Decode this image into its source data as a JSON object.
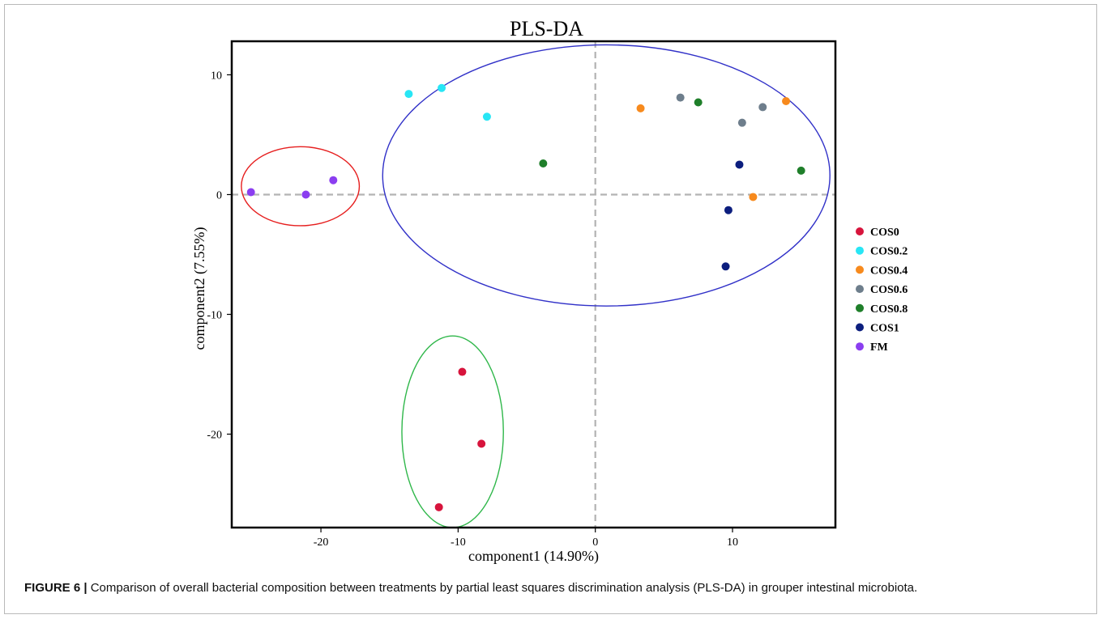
{
  "caption": {
    "label": "FIGURE 6 |",
    "text": "Comparison of overall bacterial composition between treatments by partial least squares discrimination analysis (PLS-DA) in grouper intestinal microbiota."
  },
  "chart_data": {
    "type": "scatter",
    "title": "PLS-DA",
    "xlabel": "component1 (14.90%)",
    "ylabel": "component2 (7.55%)",
    "xlim": [
      -26.5,
      17.5
    ],
    "ylim": [
      -27.8,
      12.8
    ],
    "xticks": [
      -20,
      -10,
      0,
      10
    ],
    "yticks": [
      10,
      0,
      -10,
      -20
    ],
    "reference_lines": {
      "x": 0,
      "y": 0,
      "style": "dashed",
      "color": "#b3b3b3"
    },
    "legend_position": "right",
    "series": [
      {
        "name": "COS0",
        "color": "#d7143c",
        "points": [
          [
            -9.7,
            -14.8
          ],
          [
            -8.3,
            -20.8
          ],
          [
            -11.4,
            -26.1
          ]
        ]
      },
      {
        "name": "COS0.2",
        "color": "#28e6f5",
        "points": [
          [
            -13.6,
            8.4
          ],
          [
            -11.2,
            8.9
          ],
          [
            -7.9,
            6.5
          ]
        ]
      },
      {
        "name": "COS0.4",
        "color": "#f78a1d",
        "points": [
          [
            3.3,
            7.2
          ],
          [
            13.9,
            7.8
          ],
          [
            11.5,
            -0.2
          ]
        ]
      },
      {
        "name": "COS0.6",
        "color": "#6e7e8c",
        "points": [
          [
            6.2,
            8.1
          ],
          [
            12.2,
            7.3
          ],
          [
            10.7,
            6.0
          ]
        ]
      },
      {
        "name": "COS0.8",
        "color": "#1f7f2a",
        "points": [
          [
            7.5,
            7.7
          ],
          [
            -3.8,
            2.6
          ],
          [
            15.0,
            2.0
          ]
        ]
      },
      {
        "name": "COS1",
        "color": "#0c1e7e",
        "points": [
          [
            10.5,
            2.5
          ],
          [
            9.7,
            -1.3
          ],
          [
            9.5,
            -6.0
          ]
        ]
      },
      {
        "name": "FM",
        "color": "#8b3ef0",
        "points": [
          [
            -25.1,
            0.2
          ],
          [
            -21.1,
            0.0
          ],
          [
            -19.1,
            1.2
          ]
        ]
      }
    ],
    "ellipses": [
      {
        "color": "#e61e1e",
        "center": [
          -21.5,
          0.7
        ],
        "rx": 4.3,
        "ry": 3.3
      },
      {
        "color": "#3131c8",
        "center": [
          0.8,
          1.6
        ],
        "rx": 16.3,
        "ry": 10.9
      },
      {
        "color": "#2fb74a",
        "center": [
          -10.4,
          -19.8
        ],
        "rx": 3.7,
        "ry": 8.0
      }
    ]
  }
}
